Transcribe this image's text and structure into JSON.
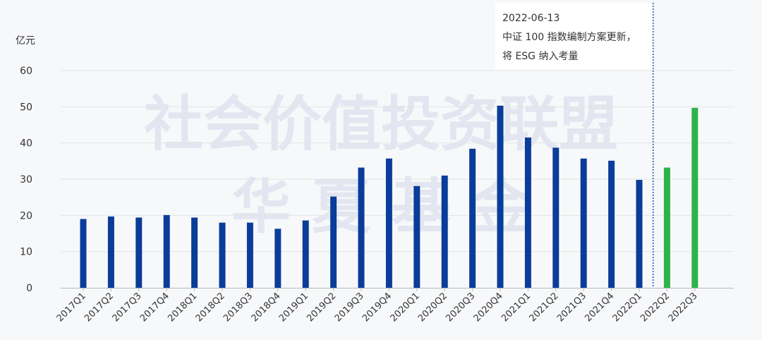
{
  "chart_data": {
    "type": "bar",
    "ylabel": "亿元",
    "ylim": [
      0,
      60
    ],
    "yticks": [
      0,
      10,
      20,
      30,
      40,
      50,
      60
    ],
    "grid": true,
    "categories": [
      "2017Q1",
      "2017Q2",
      "2017Q3",
      "2017Q4",
      "2018Q1",
      "2018Q2",
      "2018Q3",
      "2018Q4",
      "2019Q1",
      "2019Q2",
      "2019Q3",
      "2019Q4",
      "2020Q1",
      "2020Q2",
      "2020Q3",
      "2020Q4",
      "2021Q1",
      "2021Q2",
      "2021Q3",
      "2021Q4",
      "2022Q1",
      "2022Q2",
      "2022Q3"
    ],
    "values": [
      19,
      19.7,
      19.4,
      20.1,
      19.4,
      18,
      18,
      16.3,
      18.6,
      25.2,
      33.2,
      35.7,
      28.1,
      31,
      38.4,
      50.3,
      41.5,
      38.7,
      35.7,
      35.1,
      29.8,
      33.2,
      49.7
    ],
    "colors": {
      "before": "#0a3d9a",
      "after": "#2db34a",
      "marker": "#1f4fb0"
    },
    "after_from_index": 21,
    "annotation": {
      "date": "2022-06-13",
      "line1": "中证 100 指数编制方案更新，",
      "line2": "将 ESG 纳入考量"
    },
    "watermark": {
      "line1": "社会价值投资联盟",
      "line2": "华 夏 基 金"
    }
  }
}
